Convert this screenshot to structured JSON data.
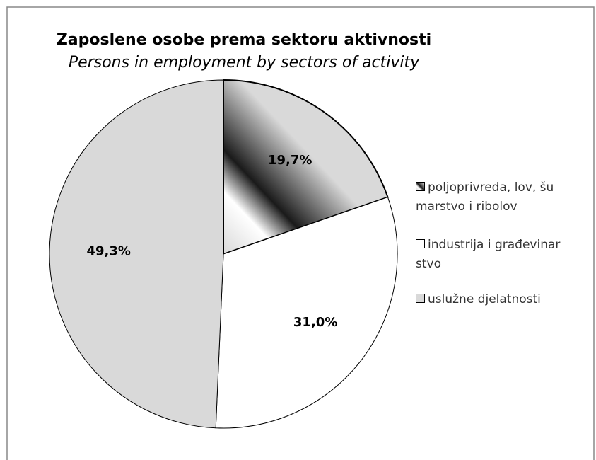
{
  "chart_data": {
    "type": "pie",
    "title": "Zaposlene osobe prema sektoru aktivnosti",
    "subtitle": "Persons in employment by sectors of activity",
    "categories": [
      "poljoprivreda, lov, šumarstvo i ribolov",
      "industrija i građevinarstvo",
      "uslužne djelatnosti"
    ],
    "values": [
      19.7,
      31.0,
      49.3
    ],
    "value_labels": [
      "19,7%",
      "31,0%",
      "49,3%"
    ],
    "colors": [
      "#1a1a1a",
      "#ffffff",
      "#d9d9d9"
    ],
    "legend": "right"
  }
}
